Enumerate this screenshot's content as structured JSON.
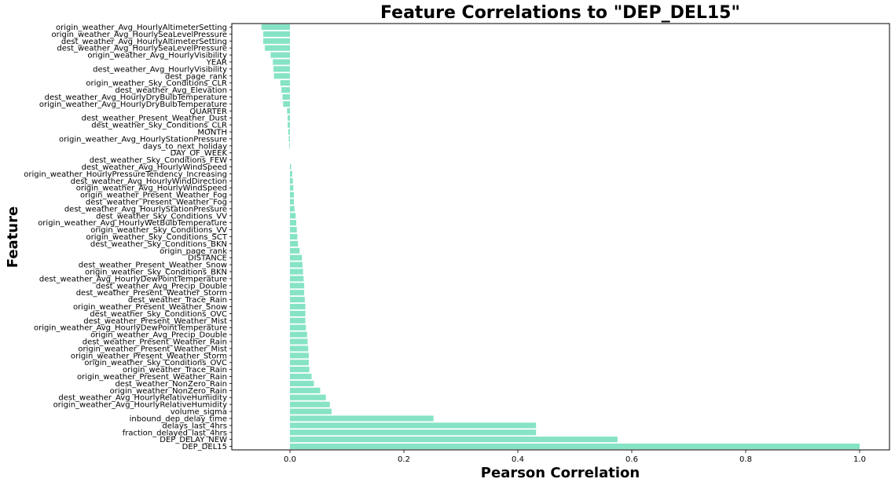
{
  "chart_data": {
    "type": "bar",
    "orientation": "horizontal",
    "title": "Feature Correlations to \"DEP_DEL15\"",
    "xlabel": "Pearson Correlation",
    "ylabel": "Feature",
    "xlim": [
      -0.1,
      1.05
    ],
    "xticks": [
      "0.0",
      "0.2",
      "0.4",
      "0.6",
      "0.8",
      "1.0"
    ],
    "bar_color": "#86e3c5",
    "grid": false,
    "categories": [
      "origin_weather_Avg_HourlyAltimeterSetting",
      "origin_weather_Avg_HourlySeaLevelPressure",
      "dest_weather_Avg_HourlyAltimeterSetting",
      "dest_weather_Avg_HourlySeaLevelPressure",
      "origin_weather_Avg_HourlyVisibility",
      "YEAR",
      "dest_weather_Avg_HourlyVisibility",
      "dest_page_rank",
      "origin_weather_Sky_Conditions_CLR",
      "dest_weather_Avg_Elevation",
      "dest_weather_Avg_HourlyDryBulbTemperature",
      "origin_weather_Avg_HourlyDryBulbTemperature",
      "QUARTER",
      "dest_weather_Present_Weather_Dust",
      "dest_weather_Sky_Conditions_CLR",
      "MONTH",
      "origin_weather_Avg_HourlyStationPressure",
      "days_to_next_holiday",
      "DAY_OF_WEEK",
      "dest_weather_Sky_Conditions_FEW",
      "dest_weather_Avg_HourlyWindSpeed",
      "origin_weather_HourlyPressureTendency_Increasing",
      "dest_weather_Avg_HourlyWindDirection",
      "origin_weather_Avg_HourlyWindSpeed",
      "origin_weather_Present_Weather_Fog",
      "dest_weather_Present_Weather_Fog",
      "dest_weather_Avg_HourlyStationPressure",
      "dest_weather_Sky_Conditions_VV",
      "origin_weather_Avg_HourlyWetBulbTemperature",
      "origin_weather_Sky_Conditions_VV",
      "origin_weather_Sky_Conditions_SCT",
      "dest_weather_Sky_Conditions_BKN",
      "origin_page_rank",
      "DISTANCE",
      "dest_weather_Present_Weather_Snow",
      "origin_weather_Sky_Conditions_BKN",
      "dest_weather_Avg_HourlyDewPointTemperature",
      "dest_weather_Avg_Precip_Double",
      "dest_weather_Present_Weather_Storm",
      "dest_weather_Trace_Rain",
      "origin_weather_Present_Weather_Snow",
      "dest_weather_Sky_Conditions_OVC",
      "dest_weather_Present_Weather_Mist",
      "origin_weather_Avg_HourlyDewPointTemperature",
      "origin_weather_Avg_Precip_Double",
      "dest_weather_Present_Weather_Rain",
      "origin_weather_Present_Weather_Mist",
      "origin_weather_Present_Weather_Storm",
      "origin_weather_Sky_Conditions_OVC",
      "origin_weather_Trace_Rain",
      "origin_weather_Present_Weather_Rain",
      "dest_weather_NonZero_Rain",
      "origin_weather_NonZero_Rain",
      "dest_weather_Avg_HourlyRelativeHumidity",
      "origin_weather_Avg_HourlyRelativeHumidity",
      "volume_sigma",
      "inbound_dep_delay_time",
      "delays_last_4hrs",
      "fraction_delayed_last_4hrs",
      "DEP_DELAY_NEW",
      "DEP_DEL15"
    ],
    "values": [
      -0.05,
      -0.047,
      -0.047,
      -0.044,
      -0.034,
      -0.03,
      -0.029,
      -0.028,
      -0.017,
      -0.015,
      -0.013,
      -0.012,
      -0.005,
      -0.004,
      -0.004,
      -0.003,
      -0.002,
      -0.001,
      0.0,
      0.0,
      0.002,
      0.004,
      0.005,
      0.006,
      0.007,
      0.007,
      0.008,
      0.01,
      0.011,
      0.012,
      0.013,
      0.014,
      0.017,
      0.021,
      0.022,
      0.023,
      0.024,
      0.025,
      0.025,
      0.026,
      0.027,
      0.027,
      0.027,
      0.028,
      0.03,
      0.031,
      0.032,
      0.033,
      0.033,
      0.034,
      0.038,
      0.042,
      0.053,
      0.063,
      0.07,
      0.073,
      0.252,
      0.432,
      0.432,
      0.575,
      1.0
    ]
  }
}
